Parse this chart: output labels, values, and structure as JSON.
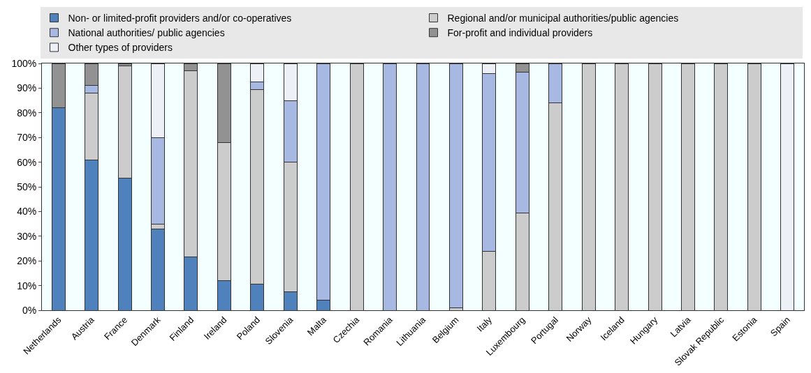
{
  "chart_data": {
    "type": "bar",
    "stacked": true,
    "legend": "top",
    "grid": false,
    "categories": [
      "Netherlands",
      "Austria",
      "France",
      "Denmark",
      "Finland",
      "Ireland",
      "Poland",
      "Slovenia",
      "Malta",
      "Czechia",
      "Romania",
      "Lithuania",
      "Belgium",
      "Italy",
      "Luxembourg",
      "Portugal",
      "Norway",
      "Iceland",
      "Hungary",
      "Latvia",
      "Slovak Republic",
      "Estonia",
      "Spain"
    ],
    "ylim": [
      0,
      100
    ],
    "yticks": [
      {
        "value": 0,
        "label": "0%"
      },
      {
        "value": 10,
        "label": "10%"
      },
      {
        "value": 20,
        "label": "20%"
      },
      {
        "value": 30,
        "label": "30%"
      },
      {
        "value": 40,
        "label": "40%"
      },
      {
        "value": 50,
        "label": "50%"
      },
      {
        "value": 60,
        "label": "60%"
      },
      {
        "value": 70,
        "label": "70%"
      },
      {
        "value": 80,
        "label": "80%"
      },
      {
        "value": 90,
        "label": "90%"
      },
      {
        "value": 100,
        "label": "100%"
      }
    ],
    "series": [
      {
        "name": "Non- or limited-profit providers and/or co-operatives",
        "color": "#4f81bd",
        "values": [
          82,
          61,
          53.5,
          33,
          21.5,
          12,
          10.5,
          7.5,
          4,
          null,
          null,
          null,
          null,
          null,
          null,
          null,
          null,
          null,
          null,
          null,
          null,
          null,
          null
        ]
      },
      {
        "name": "Regional and/or municipal authorities/public agencies",
        "color": "#cccccc",
        "values": [
          null,
          27,
          45.5,
          2,
          75.5,
          56,
          79,
          52.5,
          null,
          100,
          null,
          null,
          1,
          24,
          39.5,
          84,
          100,
          100,
          100,
          100,
          100,
          100,
          null
        ]
      },
      {
        "name": "National authorities/ public agencies",
        "color": "#a7b8e2",
        "values": [
          null,
          3,
          null,
          35,
          null,
          null,
          3,
          25,
          96,
          null,
          100,
          100,
          99,
          72,
          57,
          16,
          null,
          null,
          null,
          null,
          null,
          null,
          null
        ]
      },
      {
        "name": "For-profit and individual providers",
        "color": "#929292",
        "values": [
          18,
          9,
          1,
          null,
          3,
          32,
          null,
          null,
          null,
          null,
          null,
          null,
          null,
          null,
          3.5,
          null,
          null,
          null,
          null,
          null,
          null,
          null,
          null
        ]
      },
      {
        "name": "Other types of providers",
        "color": "#eef0f8",
        "values": [
          null,
          null,
          null,
          30,
          null,
          null,
          7.5,
          15,
          null,
          null,
          null,
          null,
          null,
          4,
          null,
          null,
          null,
          null,
          null,
          null,
          null,
          null,
          100
        ]
      }
    ]
  }
}
